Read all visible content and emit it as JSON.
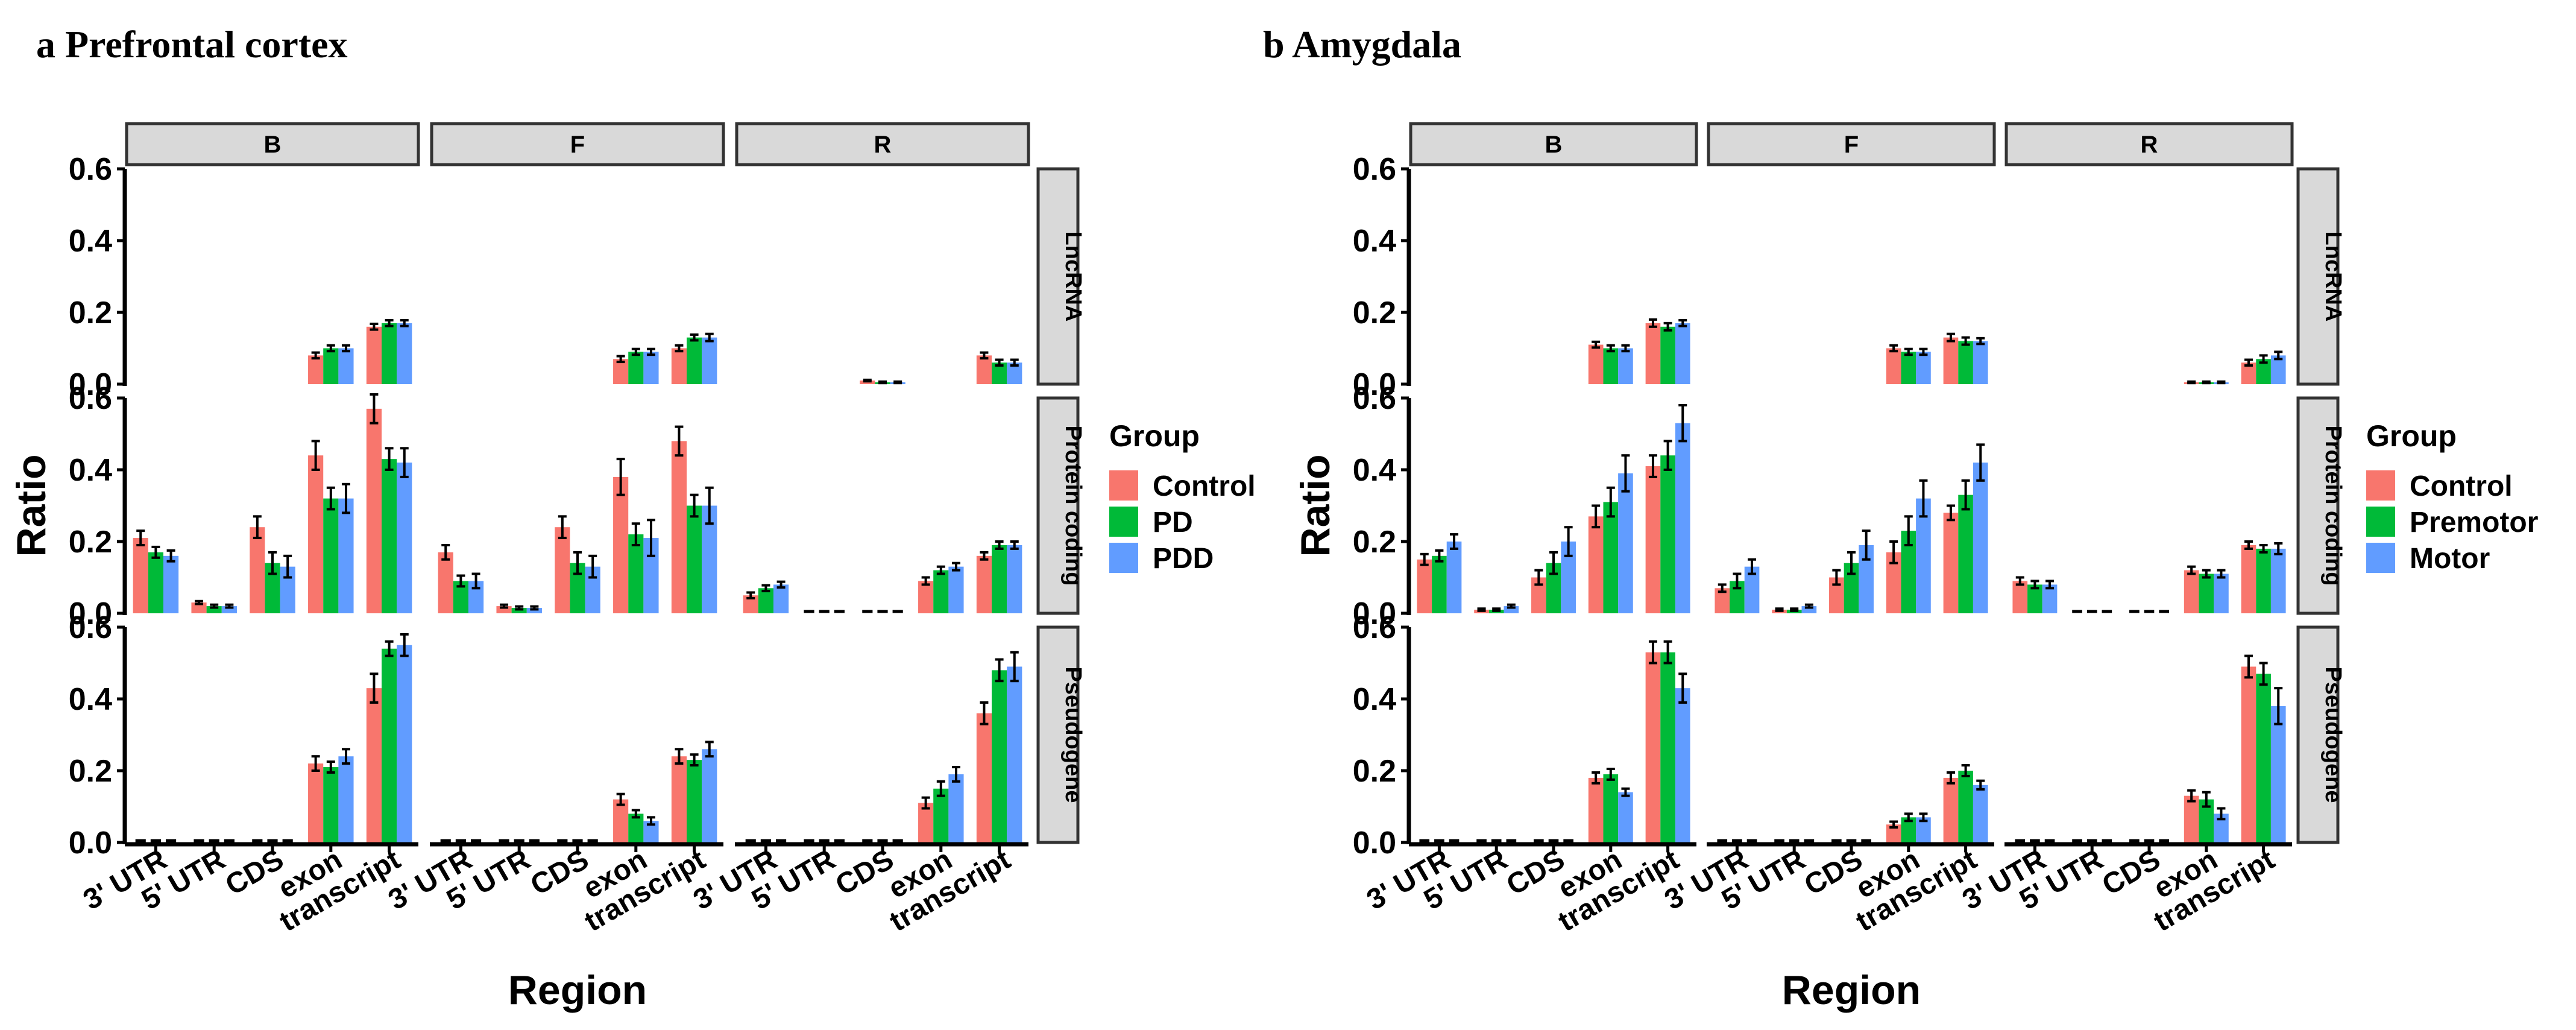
{
  "chart_data": [
    {
      "type": "bar",
      "panel_label": "a Prefrontal cortex",
      "xlabel": "Region",
      "ylabel": "Ratio",
      "ylim": [
        0,
        0.6
      ],
      "yticks": [
        "0.0",
        "0.2",
        "0.4",
        "0.6"
      ],
      "categories": [
        "3' UTR",
        "5' UTR",
        "CDS",
        "exon",
        "transcript"
      ],
      "columns": [
        "B",
        "F",
        "R"
      ],
      "rows": [
        "LncRNA",
        "Protein coding",
        "Pseudogene"
      ],
      "legend_title": "Group",
      "groups": [
        "Control",
        "PD",
        "PDD"
      ],
      "colors": [
        "#F8766D",
        "#00BA38",
        "#619CFF"
      ],
      "facets": [
        {
          "row": "LncRNA",
          "column": "B",
          "values": [
            [
              null,
              null,
              null
            ],
            [
              null,
              null,
              null
            ],
            [
              null,
              null,
              null
            ],
            [
              0.08,
              0.1,
              0.1
            ],
            [
              0.16,
              0.17,
              0.17
            ]
          ],
          "errors": [
            [
              0,
              0,
              0
            ],
            [
              0,
              0,
              0
            ],
            [
              0,
              0,
              0
            ],
            [
              0.008,
              0.008,
              0.008
            ],
            [
              0.008,
              0.008,
              0.008
            ]
          ]
        },
        {
          "row": "LncRNA",
          "column": "F",
          "values": [
            [
              null,
              null,
              null
            ],
            [
              null,
              null,
              null
            ],
            [
              null,
              null,
              null
            ],
            [
              0.07,
              0.09,
              0.09
            ],
            [
              0.1,
              0.13,
              0.13
            ]
          ],
          "errors": [
            [
              0,
              0,
              0
            ],
            [
              0,
              0,
              0
            ],
            [
              0,
              0,
              0
            ],
            [
              0.008,
              0.008,
              0.008
            ],
            [
              0.008,
              0.008,
              0.01
            ]
          ]
        },
        {
          "row": "LncRNA",
          "column": "R",
          "values": [
            [
              null,
              null,
              null
            ],
            [
              null,
              null,
              null
            ],
            [
              0.01,
              0.005,
              0.005
            ],
            [
              null,
              null,
              null
            ],
            [
              0.08,
              0.06,
              0.06
            ]
          ],
          "errors": [
            [
              0,
              0,
              0
            ],
            [
              0,
              0,
              0
            ],
            [
              0.002,
              0.002,
              0.002
            ],
            [
              0,
              0,
              0
            ],
            [
              0.008,
              0.008,
              0.008
            ]
          ]
        },
        {
          "row": "Protein coding",
          "column": "B",
          "values": [
            [
              0.21,
              0.17,
              0.16
            ],
            [
              0.03,
              0.02,
              0.02
            ],
            [
              0.24,
              0.14,
              0.13
            ],
            [
              0.44,
              0.32,
              0.32
            ],
            [
              0.57,
              0.43,
              0.42
            ]
          ],
          "errors": [
            [
              0.02,
              0.015,
              0.015
            ],
            [
              0.004,
              0.004,
              0.004
            ],
            [
              0.03,
              0.03,
              0.03
            ],
            [
              0.04,
              0.03,
              0.04
            ],
            [
              0.04,
              0.03,
              0.04
            ]
          ]
        },
        {
          "row": "Protein coding",
          "column": "F",
          "values": [
            [
              0.17,
              0.09,
              0.09
            ],
            [
              0.02,
              0.015,
              0.015
            ],
            [
              0.24,
              0.14,
              0.13
            ],
            [
              0.38,
              0.22,
              0.21
            ],
            [
              0.48,
              0.3,
              0.3
            ]
          ],
          "errors": [
            [
              0.02,
              0.015,
              0.02
            ],
            [
              0.004,
              0.004,
              0.004
            ],
            [
              0.03,
              0.03,
              0.03
            ],
            [
              0.05,
              0.03,
              0.05
            ],
            [
              0.04,
              0.03,
              0.05
            ]
          ]
        },
        {
          "row": "Protein coding",
          "column": "R",
          "values": [
            [
              0.05,
              0.07,
              0.08
            ],
            [
              0,
              0,
              0
            ],
            [
              0,
              0,
              0
            ],
            [
              0.09,
              0.12,
              0.13
            ],
            [
              0.16,
              0.19,
              0.19
            ]
          ],
          "errors": [
            [
              0.008,
              0.008,
              0.008
            ],
            [
              0,
              0,
              0
            ],
            [
              0,
              0,
              0
            ],
            [
              0.01,
              0.01,
              0.01
            ],
            [
              0.01,
              0.01,
              0.01
            ]
          ]
        },
        {
          "row": "Pseudogene",
          "column": "B",
          "values": [
            [
              0,
              0,
              0
            ],
            [
              0,
              0,
              0
            ],
            [
              0,
              0,
              0
            ],
            [
              0.22,
              0.21,
              0.24
            ],
            [
              0.43,
              0.54,
              0.55
            ]
          ],
          "errors": [
            [
              0,
              0,
              0
            ],
            [
              0,
              0,
              0
            ],
            [
              0,
              0,
              0
            ],
            [
              0.02,
              0.015,
              0.02
            ],
            [
              0.04,
              0.02,
              0.03
            ]
          ]
        },
        {
          "row": "Pseudogene",
          "column": "F",
          "values": [
            [
              0,
              0,
              0
            ],
            [
              0,
              0,
              0
            ],
            [
              0,
              0,
              0
            ],
            [
              0.12,
              0.08,
              0.06
            ],
            [
              0.24,
              0.23,
              0.26
            ]
          ],
          "errors": [
            [
              0,
              0,
              0
            ],
            [
              0,
              0,
              0
            ],
            [
              0,
              0,
              0
            ],
            [
              0.015,
              0.01,
              0.01
            ],
            [
              0.02,
              0.015,
              0.02
            ]
          ]
        },
        {
          "row": "Pseudogene",
          "column": "R",
          "values": [
            [
              0,
              0,
              0
            ],
            [
              0,
              0,
              0
            ],
            [
              0,
              0,
              0
            ],
            [
              0.11,
              0.15,
              0.19
            ],
            [
              0.36,
              0.48,
              0.49
            ]
          ],
          "errors": [
            [
              0,
              0,
              0
            ],
            [
              0,
              0,
              0
            ],
            [
              0,
              0,
              0
            ],
            [
              0.015,
              0.02,
              0.02
            ],
            [
              0.03,
              0.03,
              0.04
            ]
          ]
        }
      ]
    },
    {
      "type": "bar",
      "panel_label": "b Amygdala",
      "xlabel": "Region",
      "ylabel": "Ratio",
      "ylim": [
        0,
        0.6
      ],
      "yticks": [
        "0.0",
        "0.2",
        "0.4",
        "0.6"
      ],
      "categories": [
        "3' UTR",
        "5' UTR",
        "CDS",
        "exon",
        "transcript"
      ],
      "columns": [
        "B",
        "F",
        "R"
      ],
      "rows": [
        "LncRNA",
        "Protein coding",
        "Pseudogene"
      ],
      "legend_title": "Group",
      "groups": [
        "Control",
        "Premotor",
        "Motor"
      ],
      "colors": [
        "#F8766D",
        "#00BA38",
        "#619CFF"
      ],
      "facets": [
        {
          "row": "LncRNA",
          "column": "B",
          "values": [
            [
              null,
              null,
              null
            ],
            [
              null,
              null,
              null
            ],
            [
              null,
              null,
              null
            ],
            [
              0.11,
              0.1,
              0.1
            ],
            [
              0.17,
              0.16,
              0.17
            ]
          ],
          "errors": [
            [
              0,
              0,
              0
            ],
            [
              0,
              0,
              0
            ],
            [
              0,
              0,
              0
            ],
            [
              0.008,
              0.008,
              0.008
            ],
            [
              0.01,
              0.01,
              0.008
            ]
          ]
        },
        {
          "row": "LncRNA",
          "column": "F",
          "values": [
            [
              null,
              null,
              null
            ],
            [
              null,
              null,
              null
            ],
            [
              null,
              null,
              null
            ],
            [
              0.1,
              0.09,
              0.09
            ],
            [
              0.13,
              0.12,
              0.12
            ]
          ],
          "errors": [
            [
              0,
              0,
              0
            ],
            [
              0,
              0,
              0
            ],
            [
              0,
              0,
              0
            ],
            [
              0.008,
              0.008,
              0.008
            ],
            [
              0.01,
              0.01,
              0.008
            ]
          ]
        },
        {
          "row": "LncRNA",
          "column": "R",
          "values": [
            [
              null,
              null,
              null
            ],
            [
              null,
              null,
              null
            ],
            [
              null,
              null,
              null
            ],
            [
              0.005,
              0.005,
              0.005
            ],
            [
              0.06,
              0.07,
              0.08
            ]
          ],
          "errors": [
            [
              0,
              0,
              0
            ],
            [
              0,
              0,
              0
            ],
            [
              0,
              0,
              0
            ],
            [
              0.002,
              0.002,
              0.002
            ],
            [
              0.008,
              0.01,
              0.01
            ]
          ]
        },
        {
          "row": "Protein coding",
          "column": "B",
          "values": [
            [
              0.15,
              0.16,
              0.2
            ],
            [
              0.01,
              0.01,
              0.02
            ],
            [
              0.1,
              0.14,
              0.2
            ],
            [
              0.27,
              0.31,
              0.39
            ],
            [
              0.41,
              0.44,
              0.53
            ]
          ],
          "errors": [
            [
              0.015,
              0.015,
              0.02
            ],
            [
              0.003,
              0.003,
              0.004
            ],
            [
              0.02,
              0.03,
              0.04
            ],
            [
              0.03,
              0.04,
              0.05
            ],
            [
              0.03,
              0.04,
              0.05
            ]
          ]
        },
        {
          "row": "Protein coding",
          "column": "F",
          "values": [
            [
              0.07,
              0.09,
              0.13
            ],
            [
              0.01,
              0.01,
              0.02
            ],
            [
              0.1,
              0.14,
              0.19
            ],
            [
              0.17,
              0.23,
              0.32
            ],
            [
              0.28,
              0.33,
              0.42
            ]
          ],
          "errors": [
            [
              0.01,
              0.02,
              0.02
            ],
            [
              0.003,
              0.003,
              0.004
            ],
            [
              0.02,
              0.03,
              0.04
            ],
            [
              0.03,
              0.04,
              0.05
            ],
            [
              0.02,
              0.04,
              0.05
            ]
          ]
        },
        {
          "row": "Protein coding",
          "column": "R",
          "values": [
            [
              0.09,
              0.08,
              0.08
            ],
            [
              0,
              0,
              0
            ],
            [
              0,
              0,
              0
            ],
            [
              0.12,
              0.11,
              0.11
            ],
            [
              0.19,
              0.18,
              0.18
            ]
          ],
          "errors": [
            [
              0.01,
              0.01,
              0.01
            ],
            [
              0,
              0,
              0
            ],
            [
              0,
              0,
              0
            ],
            [
              0.01,
              0.01,
              0.01
            ],
            [
              0.01,
              0.01,
              0.015
            ]
          ]
        },
        {
          "row": "Pseudogene",
          "column": "B",
          "values": [
            [
              0,
              0,
              0
            ],
            [
              0,
              0,
              0
            ],
            [
              0,
              0,
              0
            ],
            [
              0.18,
              0.19,
              0.14
            ],
            [
              0.53,
              0.53,
              0.43
            ]
          ],
          "errors": [
            [
              0,
              0,
              0
            ],
            [
              0,
              0,
              0
            ],
            [
              0,
              0,
              0
            ],
            [
              0.015,
              0.015,
              0.01
            ],
            [
              0.03,
              0.03,
              0.04
            ]
          ]
        },
        {
          "row": "Pseudogene",
          "column": "F",
          "values": [
            [
              0,
              0,
              0
            ],
            [
              0,
              0,
              0
            ],
            [
              0,
              0,
              0
            ],
            [
              0.05,
              0.07,
              0.07
            ],
            [
              0.18,
              0.2,
              0.16
            ]
          ],
          "errors": [
            [
              0,
              0,
              0
            ],
            [
              0,
              0,
              0
            ],
            [
              0,
              0,
              0
            ],
            [
              0.008,
              0.01,
              0.01
            ],
            [
              0.015,
              0.015,
              0.012
            ]
          ]
        },
        {
          "row": "Pseudogene",
          "column": "R",
          "values": [
            [
              0,
              0,
              0
            ],
            [
              0,
              0,
              0
            ],
            [
              0,
              0,
              0
            ],
            [
              0.13,
              0.12,
              0.08
            ],
            [
              0.49,
              0.47,
              0.38
            ]
          ],
          "errors": [
            [
              0,
              0,
              0
            ],
            [
              0,
              0,
              0
            ],
            [
              0,
              0,
              0
            ],
            [
              0.015,
              0.02,
              0.015
            ],
            [
              0.03,
              0.03,
              0.05
            ]
          ]
        }
      ]
    }
  ]
}
